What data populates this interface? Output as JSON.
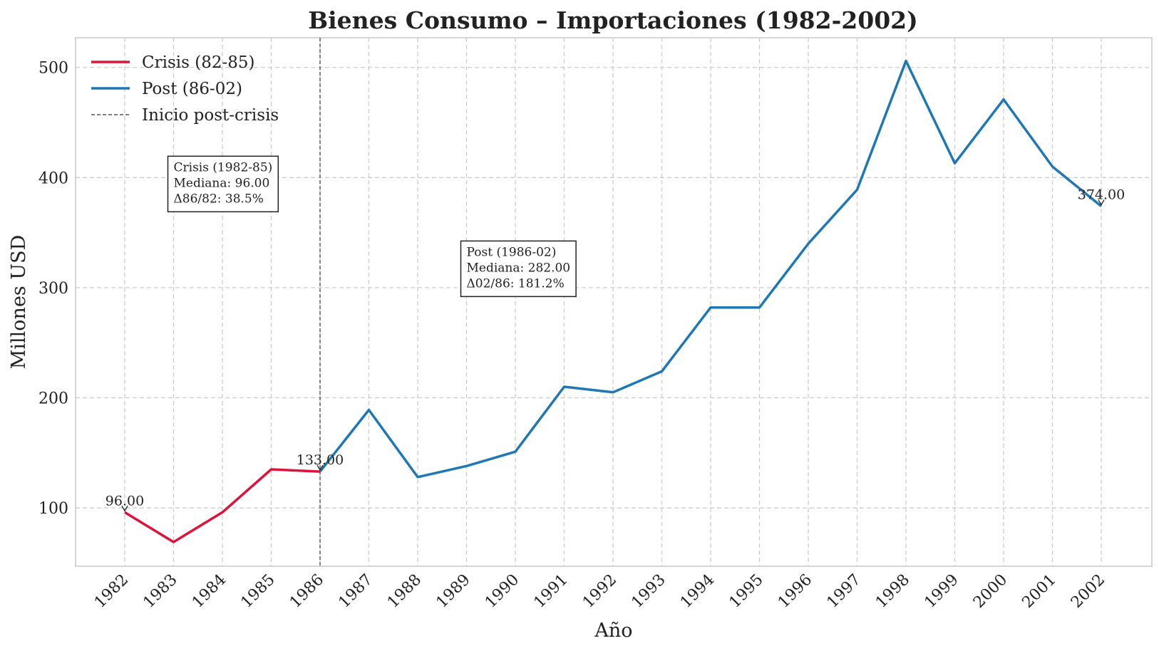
{
  "chart_data": {
    "type": "line",
    "title": "Bienes Consumo – Importaciones (1982-2002)",
    "xlabel": "Año",
    "ylabel": "Millones USD",
    "ylim": [
      47,
      527
    ],
    "yticks": [
      100,
      200,
      300,
      400,
      500
    ],
    "grid": true,
    "legend_position": "top-left",
    "categories": [
      "1982",
      "1983",
      "1984",
      "1985",
      "1986",
      "1987",
      "1988",
      "1989",
      "1990",
      "1991",
      "1992",
      "1993",
      "1994",
      "1995",
      "1996",
      "1997",
      "1998",
      "1999",
      "2000",
      "2001",
      "2002"
    ],
    "series": [
      {
        "name": "Crisis (82-85)",
        "color": "#dc143c",
        "x": [
          "1982",
          "1983",
          "1984",
          "1985",
          "1986"
        ],
        "values": [
          96,
          69,
          96,
          135,
          133
        ]
      },
      {
        "name": "Post (86-02)",
        "color": "#1f77b4",
        "x": [
          "1986",
          "1987",
          "1988",
          "1989",
          "1990",
          "1991",
          "1992",
          "1993",
          "1994",
          "1995",
          "1996",
          "1997",
          "1998",
          "1999",
          "2000",
          "2001",
          "2002"
        ],
        "values": [
          133,
          189,
          128,
          138,
          151,
          210,
          205,
          224,
          282,
          282,
          340,
          389,
          506,
          413,
          471,
          410,
          374
        ]
      }
    ],
    "vline": {
      "x": "1986",
      "label": "Inicio post-crisis",
      "color": "#555555"
    },
    "point_labels": [
      {
        "x": "1982",
        "y": 96,
        "text": "96.00"
      },
      {
        "x": "1986",
        "y": 133,
        "text": "133.00"
      },
      {
        "x": "2002",
        "y": 374,
        "text": "374.00"
      }
    ],
    "annotations": [
      {
        "name": "crisis",
        "anchor_x": "1983",
        "anchor_y": 400,
        "lines": [
          "Crisis (1982-85)",
          "Mediana: 96.00",
          "Δ86/82: 38.5%"
        ]
      },
      {
        "name": "post",
        "anchor_x": "1989",
        "anchor_y": 323,
        "lines": [
          "Post (1986-02)",
          "Mediana: 282.00",
          "Δ02/86: 181.2%"
        ]
      }
    ]
  }
}
